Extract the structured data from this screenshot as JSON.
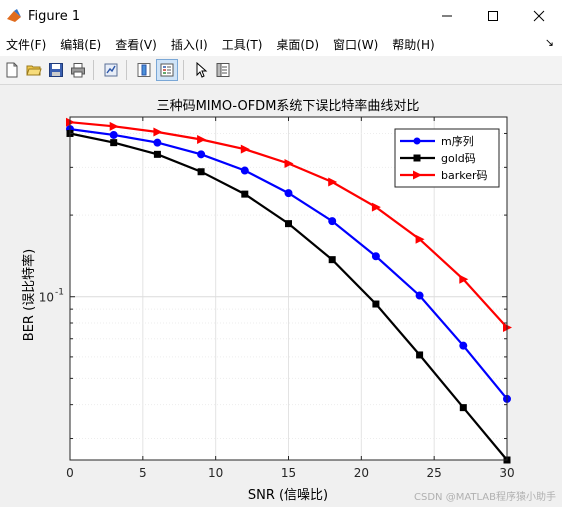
{
  "window": {
    "title": "Figure 1"
  },
  "menu": {
    "items": [
      "文件(F)",
      "编辑(E)",
      "查看(V)",
      "插入(I)",
      "工具(T)",
      "桌面(D)",
      "窗口(W)",
      "帮助(H)"
    ]
  },
  "toolbar": {
    "buttons": [
      "new-figure-icon",
      "open-file-icon",
      "save-icon",
      "print-icon",
      "link-plot-icon",
      "colorbar-icon",
      "legend-icon",
      "edit-plot-icon",
      "property-inspector-icon"
    ]
  },
  "watermark": "CSDN @MATLAB程序猿小助手",
  "chart_data": {
    "type": "line",
    "title": "三种码MIMO-OFDM系统下误比特率曲线对比",
    "xlabel": "SNR (信噪比)",
    "ylabel": "BER (误比特率)",
    "xlim": [
      0,
      30
    ],
    "ylim": [
      0.025,
      0.46
    ],
    "yscale": "log",
    "xticks": [
      0,
      5,
      10,
      15,
      20,
      25,
      30
    ],
    "xtick_labels": [
      "0",
      "5",
      "10",
      "15",
      "20",
      "25",
      "30"
    ],
    "ytick_labels": [
      {
        "value": 0.1,
        "label": "10",
        "exp": "-1"
      }
    ],
    "grid": true,
    "legend_position": "top-right",
    "x": [
      0,
      3,
      6,
      9,
      12,
      15,
      18,
      21,
      24,
      27,
      30
    ],
    "series": [
      {
        "name": "m序列",
        "color": "#0000ff",
        "marker": "circle",
        "values": [
          0.415,
          0.395,
          0.37,
          0.335,
          0.292,
          0.241,
          0.19,
          0.141,
          0.101,
          0.066,
          0.042
        ]
      },
      {
        "name": "gold码",
        "color": "#000000",
        "marker": "square",
        "values": [
          0.4,
          0.37,
          0.335,
          0.289,
          0.239,
          0.186,
          0.137,
          0.094,
          0.061,
          0.039,
          0.025
        ]
      },
      {
        "name": "barker码",
        "color": "#ff0000",
        "marker": "triangle-right",
        "values": [
          0.44,
          0.425,
          0.405,
          0.38,
          0.35,
          0.31,
          0.265,
          0.214,
          0.163,
          0.116,
          0.077
        ]
      }
    ]
  }
}
